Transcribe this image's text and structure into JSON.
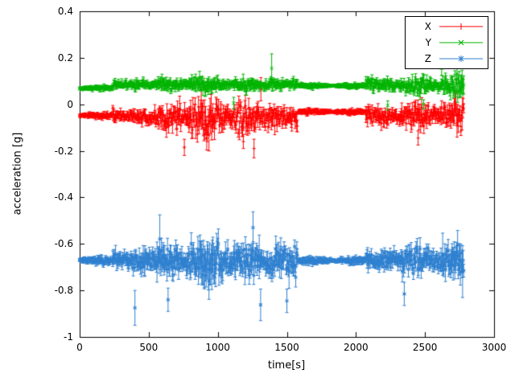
{
  "chart_data": {
    "type": "scatter",
    "style": "points-with-yerrorbars",
    "title": "",
    "xlabel": "time[s]",
    "ylabel": "acceleration [g]",
    "xlim": [
      0,
      3000
    ],
    "ylim": [
      -1,
      0.4
    ],
    "xticks": [
      0,
      500,
      1000,
      1500,
      2000,
      2500,
      3000
    ],
    "yticks": [
      -1,
      -0.8,
      -0.6,
      -0.4,
      -0.2,
      0,
      0.2,
      0.4
    ],
    "grid": false,
    "legend_position": "top-right-inside",
    "colors": {
      "background": "#ffffff",
      "axis": "#000000",
      "text": "#000000"
    },
    "sample_interval_s": 4,
    "t_end": 2780,
    "series": [
      {
        "name": "X",
        "color": "#ff0000",
        "marker": "plus",
        "segments": [
          {
            "t0": 0,
            "t1": 240,
            "mean": -0.048,
            "amp": 0.006,
            "eb": 0.009
          },
          {
            "t0": 240,
            "t1": 430,
            "mean": -0.05,
            "amp": 0.02,
            "eb": 0.025
          },
          {
            "t0": 430,
            "t1": 700,
            "mean": -0.055,
            "amp": 0.03,
            "eb": 0.035
          },
          {
            "t0": 700,
            "t1": 1580,
            "mean": -0.06,
            "amp": 0.042,
            "eb": 0.042
          },
          {
            "t0": 1580,
            "t1": 2070,
            "mean": -0.032,
            "amp": 0.005,
            "eb": 0.009
          },
          {
            "t0": 2070,
            "t1": 2780,
            "mean": -0.05,
            "amp": 0.032,
            "eb": 0.035
          }
        ],
        "outliers": [
          {
            "t": 758,
            "value": -0.185,
            "eb": 0.035
          },
          {
            "t": 1185,
            "value": -0.16,
            "eb": 0.03
          },
          {
            "t": 1262,
            "value": -0.19,
            "eb": 0.04
          },
          {
            "t": 1312,
            "value": 0.065,
            "eb": 0.05
          },
          {
            "t": 2450,
            "value": -0.145,
            "eb": 0.03
          }
        ]
      },
      {
        "name": "Y",
        "color": "#00b400",
        "marker": "cross",
        "segments": [
          {
            "t0": 0,
            "t1": 240,
            "mean": 0.068,
            "amp": 0.005,
            "eb": 0.008
          },
          {
            "t0": 240,
            "t1": 1580,
            "mean": 0.085,
            "amp": 0.017,
            "eb": 0.02
          },
          {
            "t0": 1580,
            "t1": 2070,
            "mean": 0.08,
            "amp": 0.004,
            "eb": 0.008
          },
          {
            "t0": 2070,
            "t1": 2780,
            "mean": 0.082,
            "amp": 0.024,
            "eb": 0.026
          }
        ],
        "outliers": [
          {
            "t": 1390,
            "value": 0.155,
            "eb": 0.062
          },
          {
            "t": 1115,
            "value": 0.005,
            "eb": 0.025
          },
          {
            "t": 2230,
            "value": -0.005,
            "eb": 0.02
          },
          {
            "t": 2490,
            "value": 0.0,
            "eb": 0.02
          },
          {
            "t": 2620,
            "value": 0.155,
            "eb": 0.03
          }
        ]
      },
      {
        "name": "Z",
        "color": "#2f80d0",
        "marker": "asterisk",
        "segments": [
          {
            "t0": 0,
            "t1": 240,
            "mean": -0.672,
            "amp": 0.008,
            "eb": 0.012
          },
          {
            "t0": 240,
            "t1": 430,
            "mean": -0.672,
            "amp": 0.028,
            "eb": 0.038
          },
          {
            "t0": 430,
            "t1": 800,
            "mean": -0.67,
            "amp": 0.042,
            "eb": 0.05
          },
          {
            "t0": 800,
            "t1": 1580,
            "mean": -0.672,
            "amp": 0.05,
            "eb": 0.058
          },
          {
            "t0": 1580,
            "t1": 2070,
            "mean": -0.672,
            "amp": 0.006,
            "eb": 0.012
          },
          {
            "t0": 2070,
            "t1": 2780,
            "mean": -0.668,
            "amp": 0.036,
            "eb": 0.042
          }
        ],
        "outliers": [
          {
            "t": 400,
            "value": -0.875,
            "eb": 0.075
          },
          {
            "t": 640,
            "value": -0.84,
            "eb": 0.05
          },
          {
            "t": 1255,
            "value": -0.53,
            "eb": 0.068
          },
          {
            "t": 1310,
            "value": -0.862,
            "eb": 0.068
          },
          {
            "t": 1500,
            "value": -0.845,
            "eb": 0.05
          },
          {
            "t": 2350,
            "value": -0.815,
            "eb": 0.05
          }
        ]
      }
    ]
  }
}
